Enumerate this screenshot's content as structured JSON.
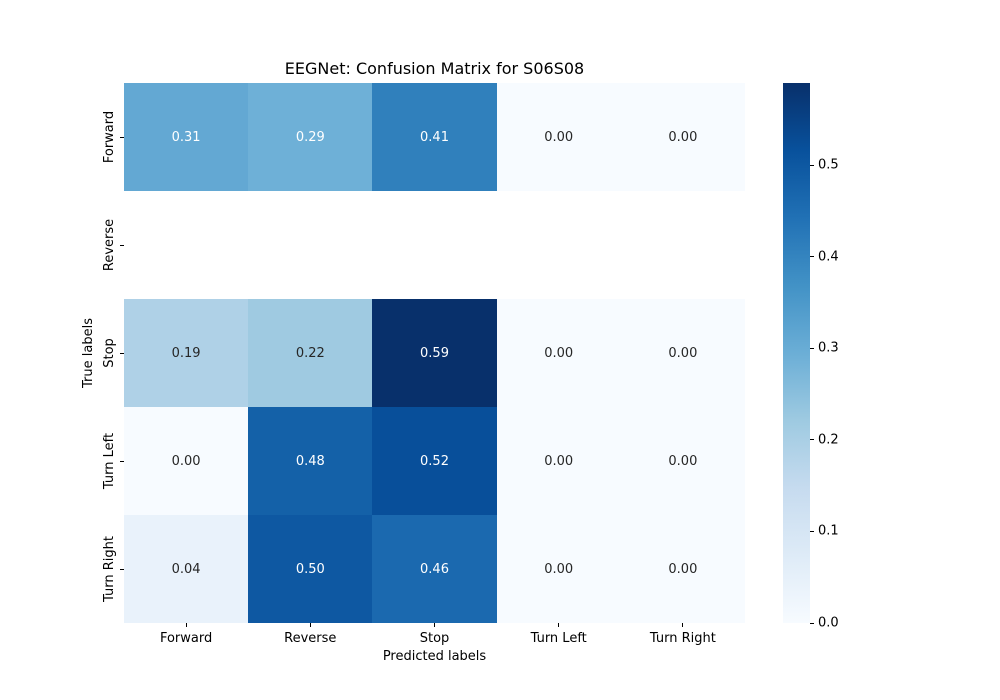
{
  "chart_data": {
    "type": "heatmap",
    "title": "EEGNet: Confusion Matrix for S06S08",
    "xlabel": "Predicted labels",
    "ylabel": "True labels",
    "x_categories": [
      "Forward",
      "Reverse",
      "Stop",
      "Turn Left",
      "Turn Right"
    ],
    "y_categories": [
      "Forward",
      "Reverse",
      "Stop",
      "Turn Left",
      "Turn Right"
    ],
    "values": [
      [
        0.31,
        0.29,
        0.41,
        0.0,
        0.0
      ],
      [
        null,
        null,
        null,
        null,
        null
      ],
      [
        0.19,
        0.22,
        0.59,
        0.0,
        0.0
      ],
      [
        0.0,
        0.48,
        0.52,
        0.0,
        0.0
      ],
      [
        0.04,
        0.5,
        0.46,
        0.0,
        0.0
      ]
    ],
    "vmin": 0.0,
    "vmax": 0.59,
    "nan_color": "#ffffff",
    "annotation_colors": {
      "light": "#ffffff",
      "dark": "#262626"
    },
    "colormap": {
      "name": "Blues",
      "stops": [
        {
          "pos": 0.0,
          "color": "#f7fbff"
        },
        {
          "pos": 0.125,
          "color": "#deebf7"
        },
        {
          "pos": 0.25,
          "color": "#c6dbef"
        },
        {
          "pos": 0.375,
          "color": "#9ecae1"
        },
        {
          "pos": 0.5,
          "color": "#6baed6"
        },
        {
          "pos": 0.625,
          "color": "#4292c6"
        },
        {
          "pos": 0.75,
          "color": "#2171b5"
        },
        {
          "pos": 0.875,
          "color": "#08519c"
        },
        {
          "pos": 1.0,
          "color": "#08306b"
        }
      ]
    },
    "colorbar": {
      "ticks": [
        0.0,
        0.1,
        0.2,
        0.3,
        0.4,
        0.5
      ],
      "position": "right"
    },
    "grid": false,
    "legend": false
  }
}
